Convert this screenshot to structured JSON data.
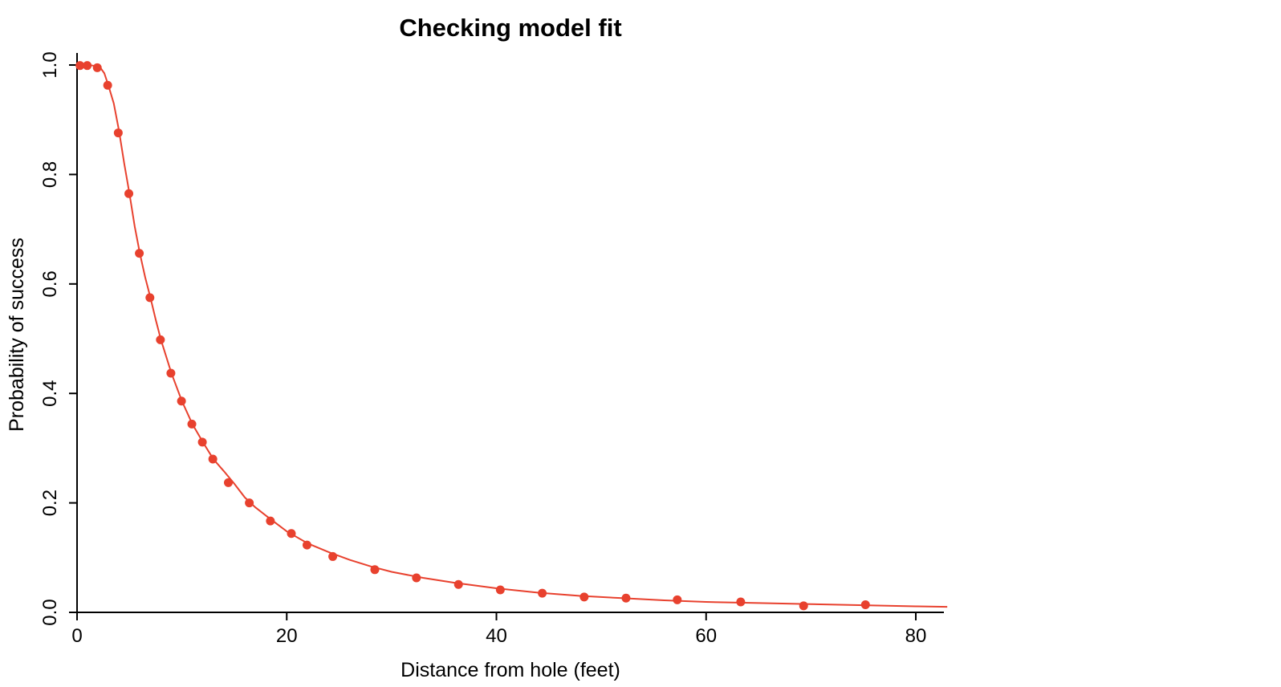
{
  "chart_data": {
    "type": "scatter",
    "title": "Checking model fit",
    "xlabel": "Distance from hole (feet)",
    "ylabel": "Probability of success",
    "xlim": [
      0,
      82
    ],
    "ylim": [
      0,
      1
    ],
    "xticks": [
      0,
      20,
      40,
      60,
      80
    ],
    "xtick_labels": [
      "0",
      "20",
      "40",
      "60",
      "80"
    ],
    "yticks": [
      0,
      0.2,
      0.4,
      0.6,
      0.8,
      1.0
    ],
    "ytick_labels": [
      "0.0",
      "0.2",
      "0.4",
      "0.6",
      "0.8",
      "1.0"
    ],
    "grid": false,
    "legend": "none",
    "color": "#e8412e",
    "points": {
      "x": [
        0.28,
        0.97,
        1.93,
        2.92,
        3.93,
        4.94,
        5.94,
        6.95,
        7.95,
        8.95,
        9.96,
        10.95,
        11.95,
        12.95,
        14.43,
        16.43,
        18.44,
        20.44,
        21.93,
        24.39,
        28.4,
        32.37,
        36.38,
        40.37,
        44.37,
        48.37,
        52.36,
        57.25,
        63.3,
        69.3,
        75.2
      ],
      "y": [
        0.999,
        0.999,
        0.995,
        0.963,
        0.876,
        0.765,
        0.656,
        0.575,
        0.498,
        0.437,
        0.386,
        0.344,
        0.311,
        0.28,
        0.237,
        0.2,
        0.167,
        0.144,
        0.123,
        0.102,
        0.078,
        0.063,
        0.051,
        0.041,
        0.035,
        0.028,
        0.026,
        0.023,
        0.019,
        0.012,
        0.014
      ]
    },
    "fitted_curve": {
      "x": [
        0,
        0.5,
        1,
        1.5,
        2,
        2.3,
        2.6,
        3,
        3.5,
        4,
        4.5,
        5,
        5.5,
        6,
        6.5,
        7,
        7.5,
        8,
        9,
        10,
        11,
        12,
        13,
        14,
        15,
        16,
        17,
        18,
        20,
        22,
        24,
        26,
        28,
        30,
        33,
        36,
        40,
        44,
        48,
        52,
        56,
        60,
        65,
        70,
        75,
        80,
        83
      ],
      "y": [
        1.0,
        1.0,
        1.0,
        0.999,
        0.997,
        0.993,
        0.985,
        0.962,
        0.93,
        0.88,
        0.82,
        0.765,
        0.705,
        0.655,
        0.612,
        0.575,
        0.535,
        0.498,
        0.437,
        0.386,
        0.344,
        0.311,
        0.28,
        0.258,
        0.235,
        0.21,
        0.192,
        0.177,
        0.148,
        0.126,
        0.11,
        0.096,
        0.084,
        0.074,
        0.063,
        0.054,
        0.044,
        0.036,
        0.03,
        0.026,
        0.022,
        0.019,
        0.017,
        0.015,
        0.013,
        0.011,
        0.01
      ]
    }
  }
}
